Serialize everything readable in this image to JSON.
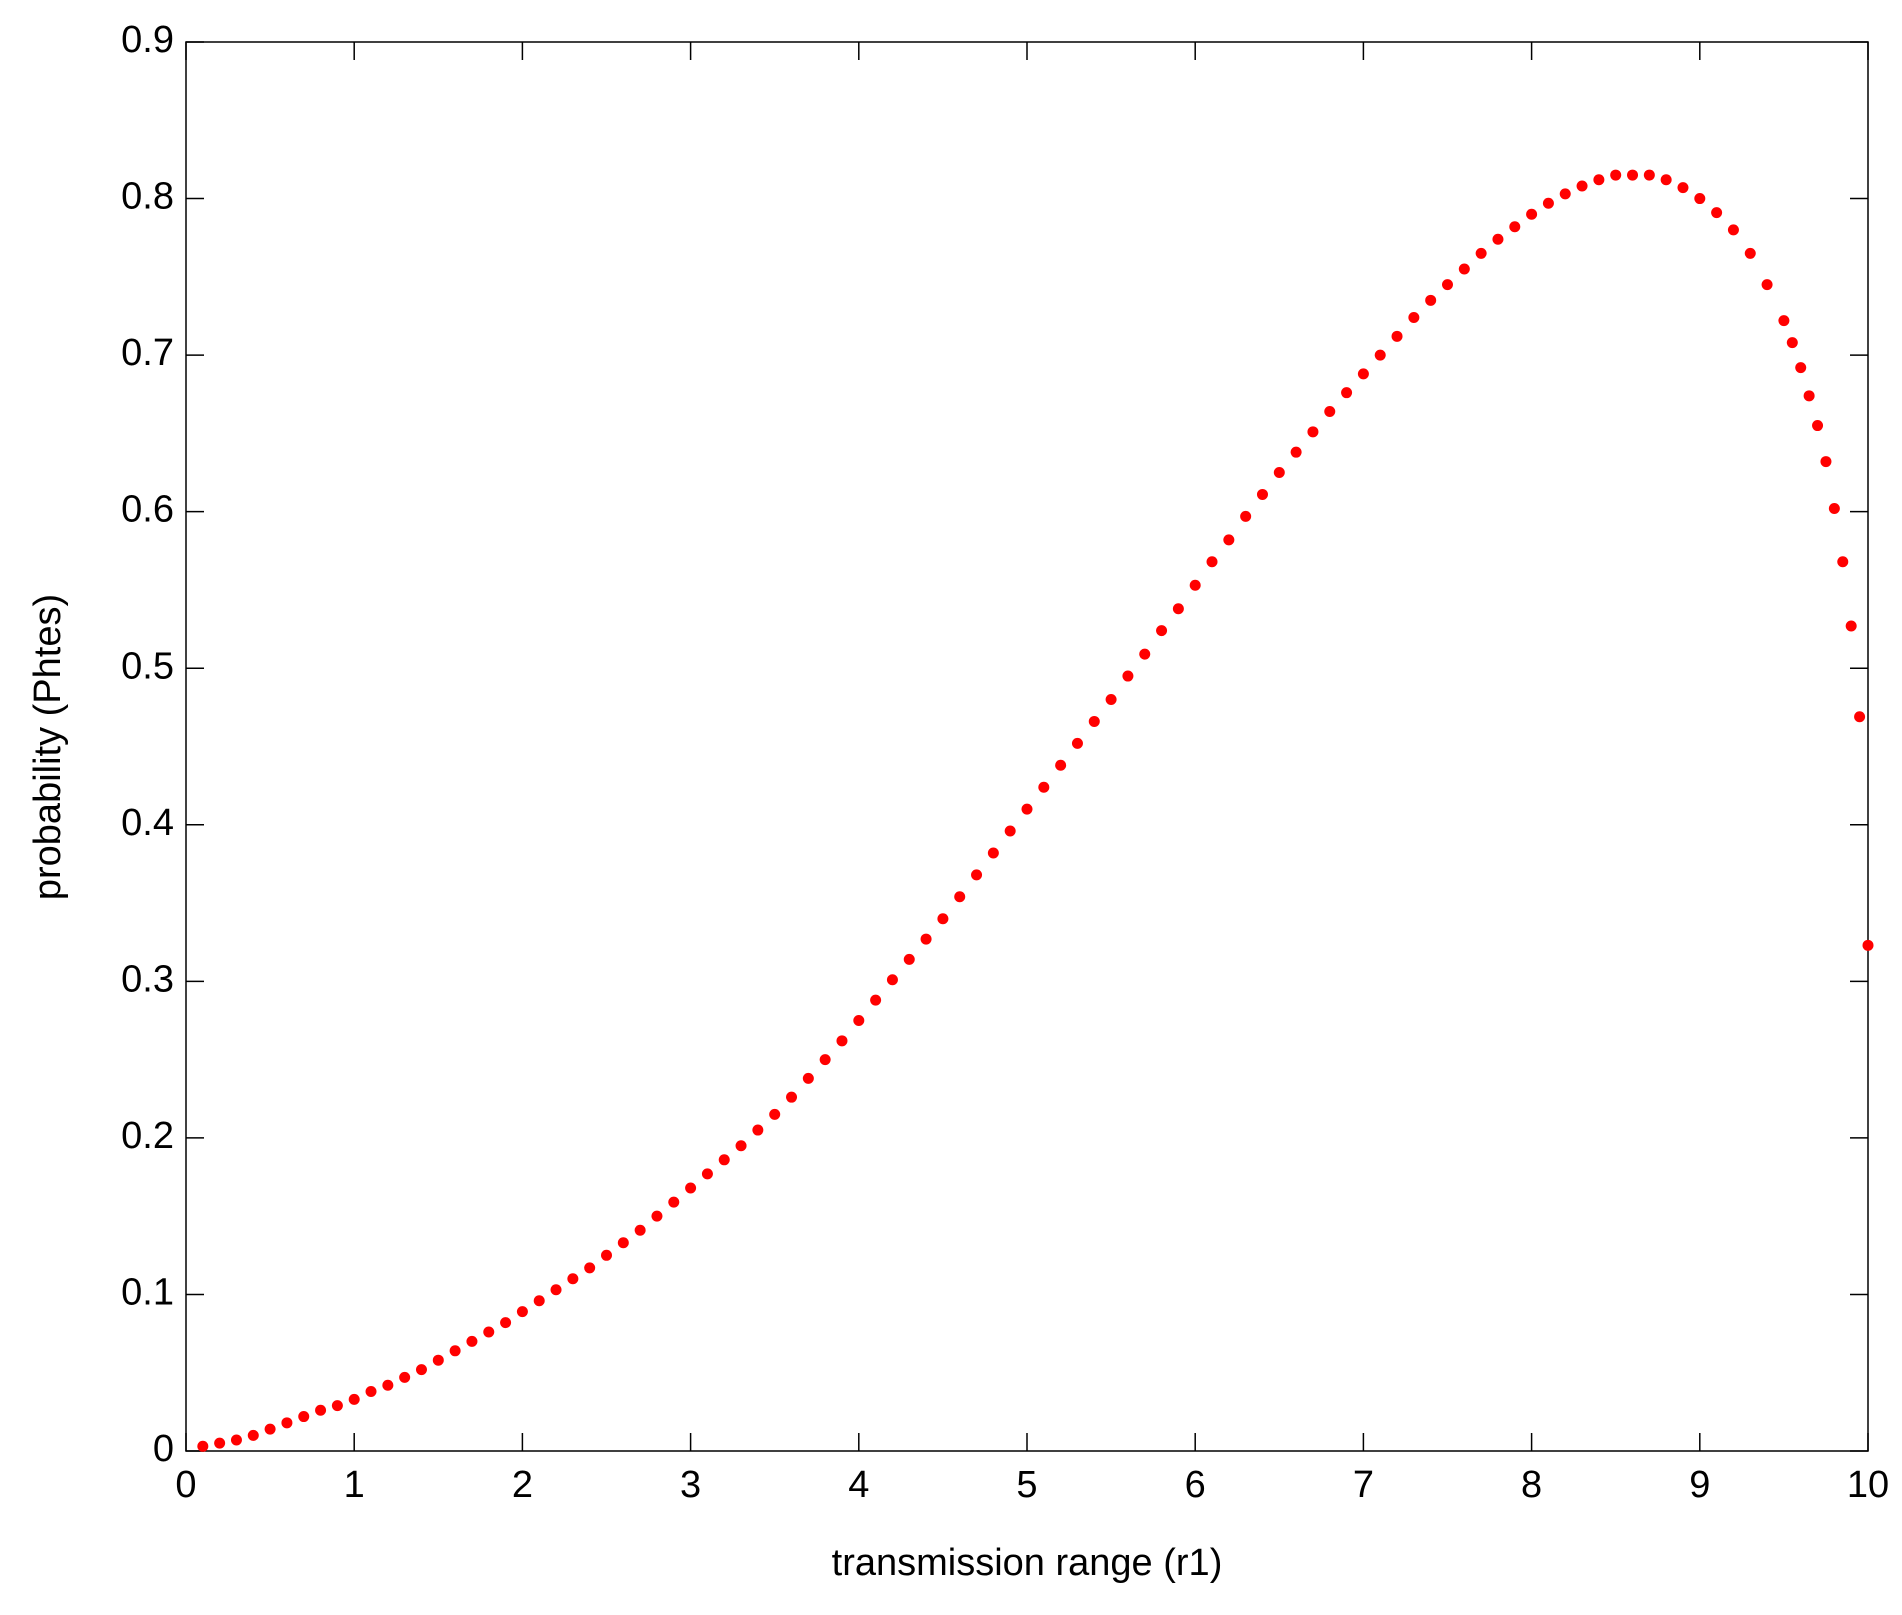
{
  "chart_data": {
    "type": "scatter",
    "xlabel": "transmission range (r1)",
    "ylabel": "probability (Phtes)",
    "color": "#ff0000",
    "xlim": [
      0,
      10
    ],
    "xticks": [
      0,
      1,
      2,
      3,
      4,
      5,
      6,
      7,
      8,
      9,
      10
    ],
    "ylim": [
      0,
      0.9
    ],
    "yticks": [
      0,
      0.1,
      0.2,
      0.3,
      0.4,
      0.5,
      0.6,
      0.7,
      0.8,
      0.9
    ],
    "x": [
      0.1,
      0.2,
      0.3,
      0.4,
      0.5,
      0.6,
      0.7,
      0.8,
      0.9,
      1.0,
      1.1,
      1.2,
      1.3,
      1.4,
      1.5,
      1.6,
      1.7,
      1.8,
      1.9,
      2.0,
      2.1,
      2.2,
      2.3,
      2.4,
      2.5,
      2.6,
      2.7,
      2.8,
      2.9,
      3.0,
      3.1,
      3.2,
      3.3,
      3.4,
      3.5,
      3.6,
      3.7,
      3.8,
      3.9,
      4.0,
      4.1,
      4.2,
      4.3,
      4.4,
      4.5,
      4.6,
      4.7,
      4.8,
      4.9,
      5.0,
      5.1,
      5.2,
      5.3,
      5.4,
      5.5,
      5.6,
      5.7,
      5.8,
      5.9,
      6.0,
      6.1,
      6.2,
      6.3,
      6.4,
      6.5,
      6.6,
      6.7,
      6.8,
      6.9,
      7.0,
      7.1,
      7.2,
      7.3,
      7.4,
      7.5,
      7.6,
      7.7,
      7.8,
      7.9,
      8.0,
      8.1,
      8.2,
      8.3,
      8.4,
      8.5,
      8.6,
      8.7,
      8.8,
      8.9,
      9.0,
      9.1,
      9.2,
      9.3,
      9.4,
      9.5,
      9.55,
      9.6,
      9.65,
      9.7,
      9.75,
      9.8,
      9.85,
      9.9,
      9.95,
      10
    ],
    "values": [
      0.003,
      0.005,
      0.007,
      0.01,
      0.014,
      0.018,
      0.022,
      0.026,
      0.029,
      0.033,
      0.038,
      0.042,
      0.047,
      0.052,
      0.058,
      0.064,
      0.07,
      0.076,
      0.082,
      0.089,
      0.096,
      0.103,
      0.11,
      0.117,
      0.125,
      0.133,
      0.141,
      0.15,
      0.159,
      0.168,
      0.177,
      0.186,
      0.195,
      0.205,
      0.215,
      0.226,
      0.238,
      0.25,
      0.262,
      0.275,
      0.288,
      0.301,
      0.314,
      0.327,
      0.34,
      0.354,
      0.368,
      0.382,
      0.396,
      0.41,
      0.424,
      0.438,
      0.452,
      0.466,
      0.48,
      0.495,
      0.509,
      0.524,
      0.538,
      0.553,
      0.568,
      0.582,
      0.597,
      0.611,
      0.625,
      0.638,
      0.651,
      0.664,
      0.676,
      0.688,
      0.7,
      0.712,
      0.724,
      0.735,
      0.745,
      0.755,
      0.765,
      0.774,
      0.782,
      0.79,
      0.797,
      0.803,
      0.808,
      0.812,
      0.815,
      0.815,
      0.815,
      0.812,
      0.807,
      0.8,
      0.791,
      0.78,
      0.765,
      0.745,
      0.722,
      0.708,
      0.692,
      0.674,
      0.655,
      0.632,
      0.602,
      0.568,
      0.527,
      0.469,
      0.323
    ]
  }
}
